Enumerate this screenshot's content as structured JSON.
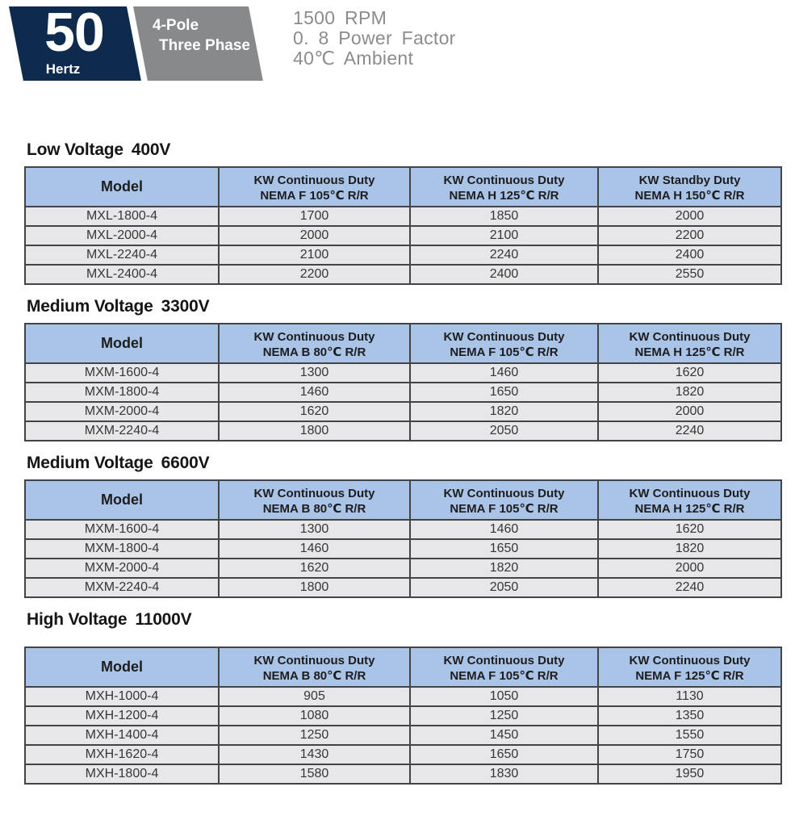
{
  "banner": {
    "hertz_value": "50",
    "hertz_label": "Hertz",
    "pole_label": "4-Pole",
    "phase_label": "Three Phase",
    "specs": [
      "1500 RPM",
      "0. 8 Power Factor",
      "40℃ Ambient"
    ]
  },
  "colors": {
    "badge_navy": "#0e2a4d",
    "badge_gray": "#87898b",
    "spec_text_gray": "#8a8c8e",
    "table_header_blue": "#a9c4e6",
    "table_row_gray": "#e7e7e9",
    "table_border": "#424446"
  },
  "sections": [
    {
      "title": "Low Voltage",
      "voltage": "400V",
      "columns": [
        {
          "top": "Model",
          "bottom": ""
        },
        {
          "top": "KW Continuous Duty",
          "bottom": "NEMA F 105℃ R/R"
        },
        {
          "top": "KW Continuous Duty",
          "bottom": "NEMA H 125℃ R/R"
        },
        {
          "top": "KW Standby Duty",
          "bottom": "NEMA H 150℃ R/R"
        }
      ],
      "rows": [
        [
          "MXL-1800-4",
          "1700",
          "1850",
          "2000"
        ],
        [
          "MXL-2000-4",
          "2000",
          "2100",
          "2200"
        ],
        [
          "MXL-2240-4",
          "2100",
          "2240",
          "2400"
        ],
        [
          "MXL-2400-4",
          "2200",
          "2400",
          "2550"
        ]
      ]
    },
    {
      "title": "Medium Voltage",
      "voltage": "3300V",
      "columns": [
        {
          "top": "Model",
          "bottom": ""
        },
        {
          "top": "KW Continuous Duty",
          "bottom": "NEMA B 80℃ R/R"
        },
        {
          "top": "KW Continuous Duty",
          "bottom": "NEMA F 105℃ R/R"
        },
        {
          "top": "KW Continuous Duty",
          "bottom": "NEMA H 125℃ R/R"
        }
      ],
      "rows": [
        [
          "MXM-1600-4",
          "1300",
          "1460",
          "1620"
        ],
        [
          "MXM-1800-4",
          "1460",
          "1650",
          "1820"
        ],
        [
          "MXM-2000-4",
          "1620",
          "1820",
          "2000"
        ],
        [
          "MXM-2240-4",
          "1800",
          "2050",
          "2240"
        ]
      ]
    },
    {
      "title": "Medium Voltage",
      "voltage": "6600V",
      "columns": [
        {
          "top": "Model",
          "bottom": ""
        },
        {
          "top": "KW Continuous Duty",
          "bottom": "NEMA B 80℃ R/R"
        },
        {
          "top": "KW Continuous Duty",
          "bottom": "NEMA F 105℃ R/R"
        },
        {
          "top": "KW Continuous Duty",
          "bottom": "NEMA H 125℃ R/R"
        }
      ],
      "rows": [
        [
          "MXM-1600-4",
          "1300",
          "1460",
          "1620"
        ],
        [
          "MXM-1800-4",
          "1460",
          "1650",
          "1820"
        ],
        [
          "MXM-2000-4",
          "1620",
          "1820",
          "2000"
        ],
        [
          "MXM-2240-4",
          "1800",
          "2050",
          "2240"
        ]
      ]
    },
    {
      "title": "High Voltage",
      "voltage": "11000V",
      "columns": [
        {
          "top": "Model",
          "bottom": ""
        },
        {
          "top": "KW Continuous Duty",
          "bottom": "NEMA B 80℃ R/R"
        },
        {
          "top": "KW Continuous Duty",
          "bottom": "NEMA F 105℃ R/R"
        },
        {
          "top": "KW Continuous Duty",
          "bottom": "NEMA F 125℃ R/R"
        }
      ],
      "rows": [
        [
          "MXH-1000-4",
          "905",
          "1050",
          "1130"
        ],
        [
          "MXH-1200-4",
          "1080",
          "1250",
          "1350"
        ],
        [
          "MXH-1400-4",
          "1250",
          "1450",
          "1550"
        ],
        [
          "MXH-1620-4",
          "1430",
          "1650",
          "1750"
        ],
        [
          "MXH-1800-4",
          "1580",
          "1830",
          "1950"
        ]
      ]
    }
  ]
}
